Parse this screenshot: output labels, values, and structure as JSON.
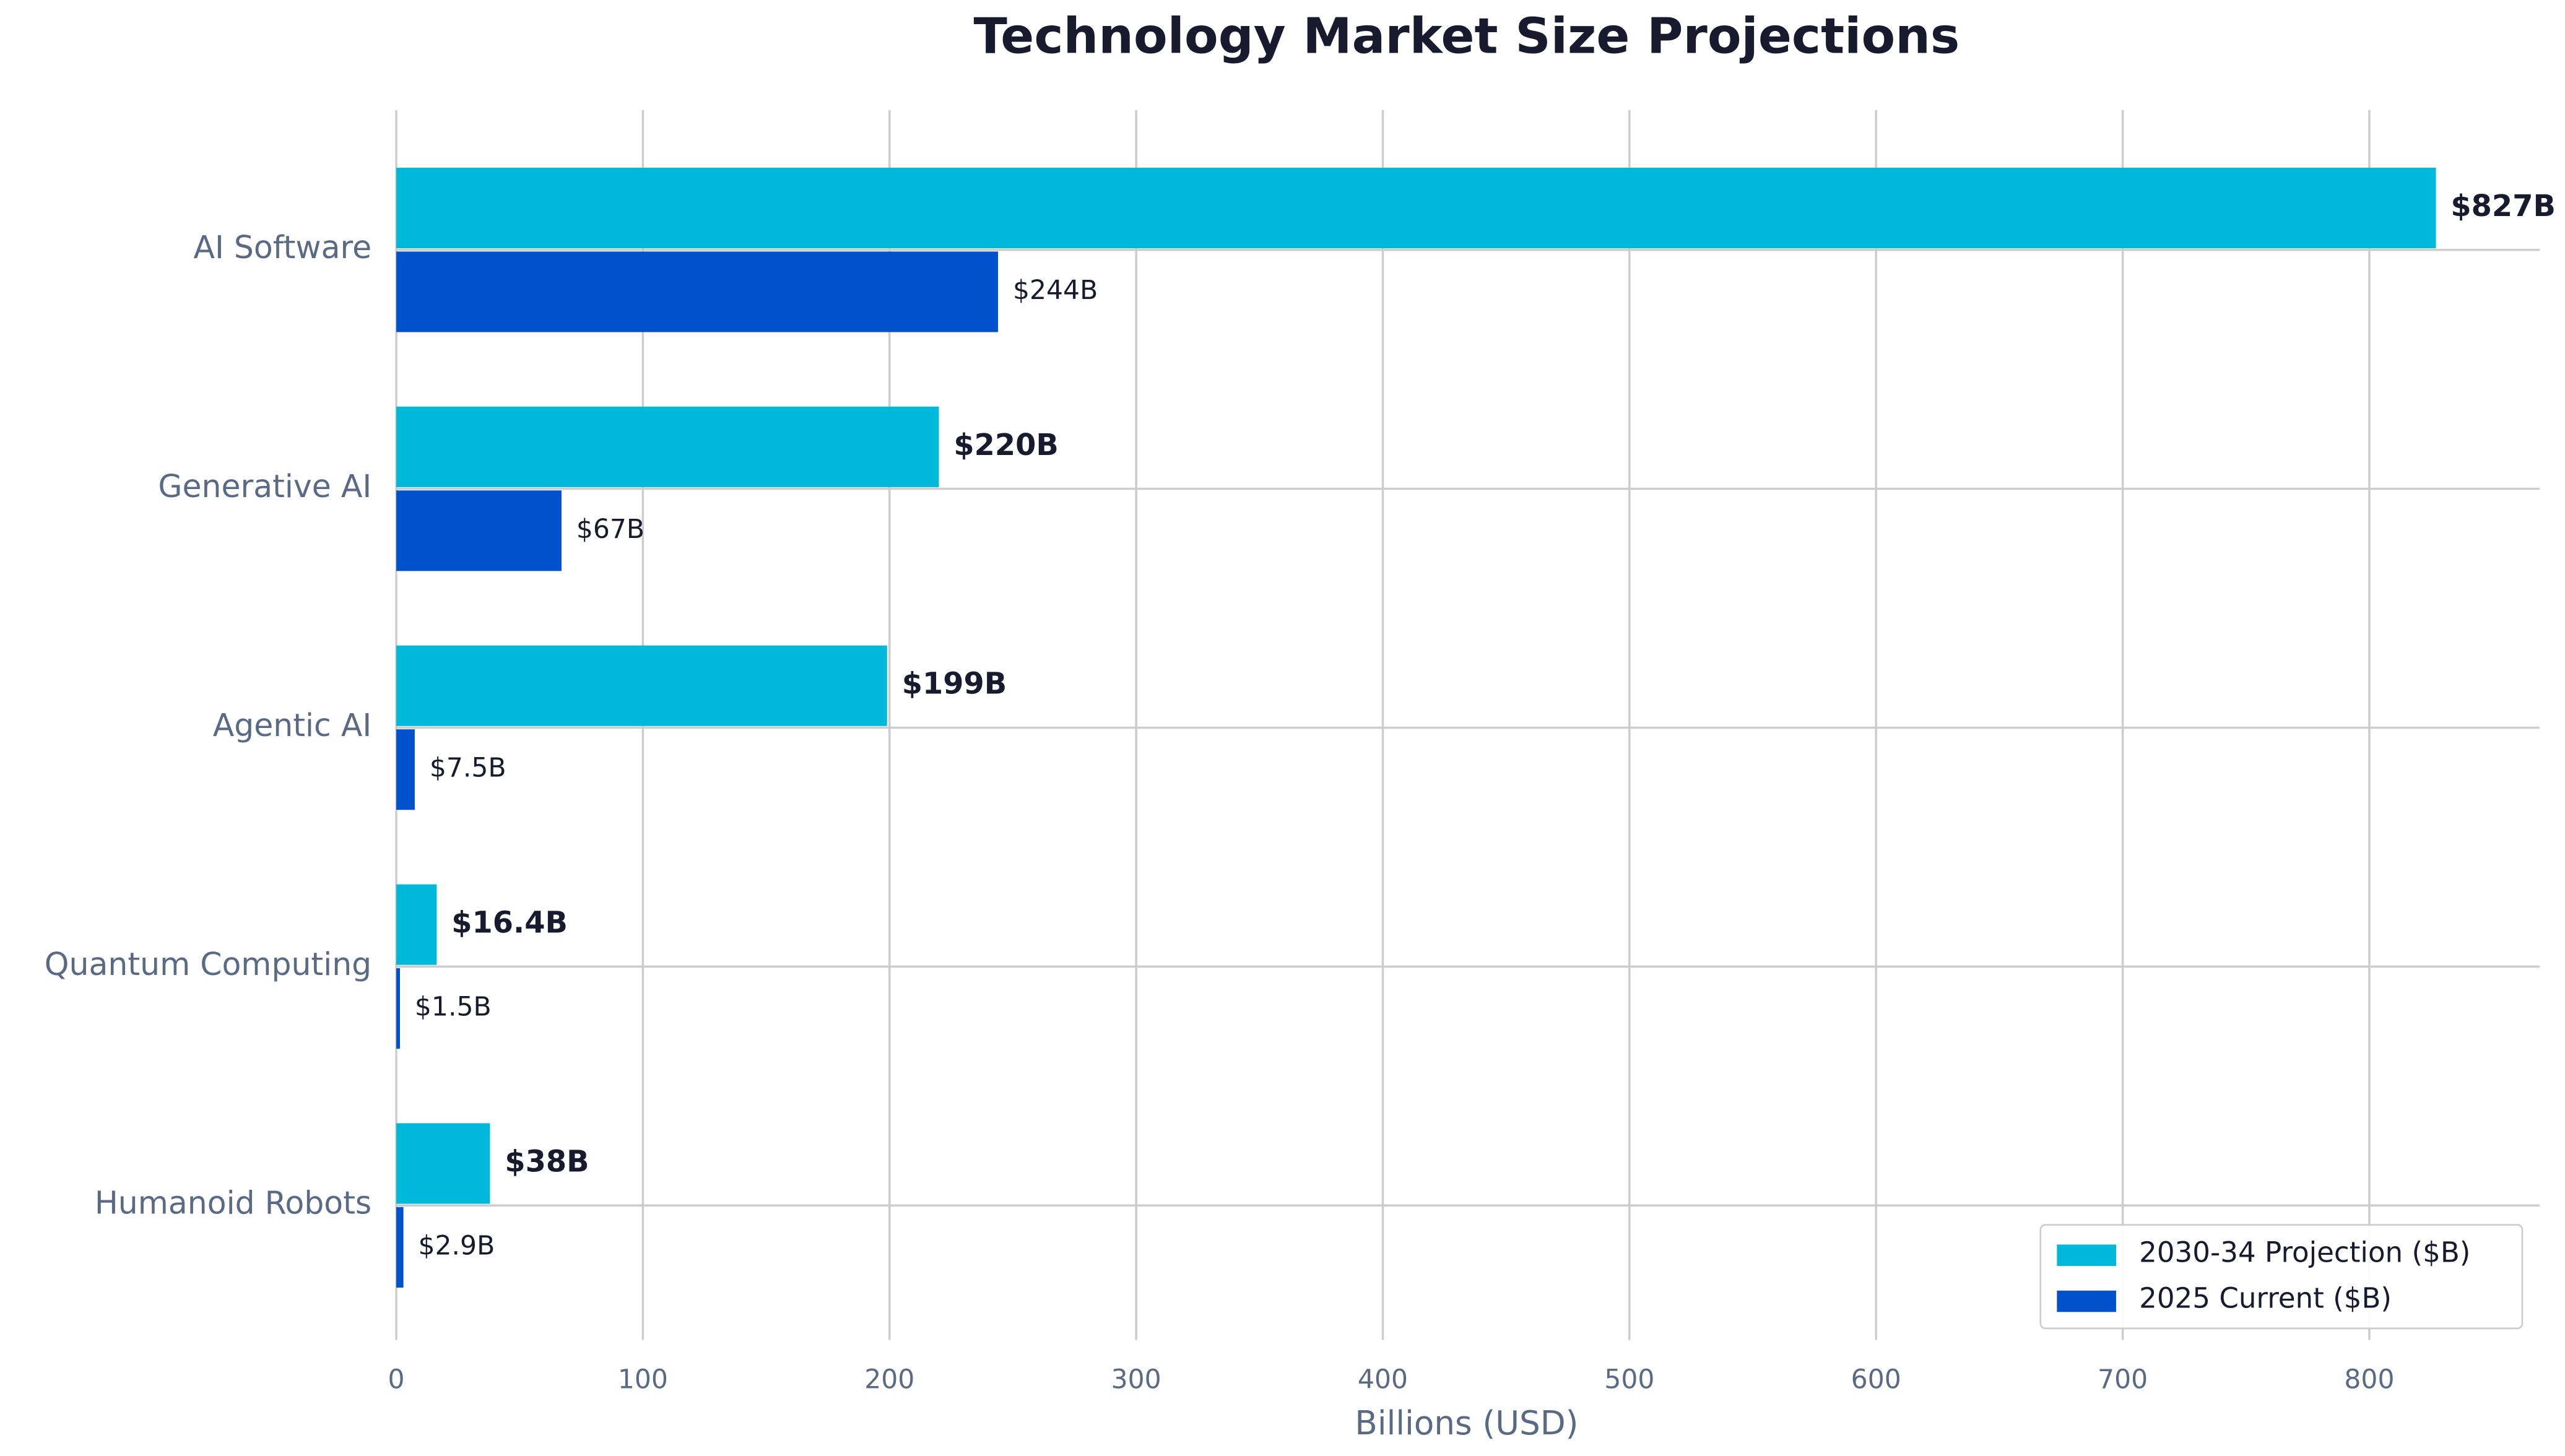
{
  "chart_data": {
    "type": "barh",
    "title": "Technology Market Size Projections",
    "xlabel": "Billions (USD)",
    "categories": [
      "AI Software",
      "Generative AI",
      "Agentic AI",
      "Quantum Computing",
      "Humanoid Robots"
    ],
    "series": [
      {
        "name": "2030-34 Projection ($B)",
        "color": "#00b8d9",
        "values": [
          827,
          220,
          199,
          16.4,
          38
        ],
        "value_labels": [
          "$827B",
          "$220B",
          "$199B",
          "$16.4B",
          "$38B"
        ]
      },
      {
        "name": "2025 Current ($B)",
        "color": "#0052cc",
        "values": [
          244,
          67,
          7.5,
          1.5,
          2.9
        ],
        "value_labels": [
          "$244B",
          "$67B",
          "$7.5B",
          "$1.5B",
          "$2.9B"
        ]
      }
    ],
    "xlim": [
      0,
      869
    ],
    "xticks": [
      0,
      100,
      200,
      300,
      400,
      500,
      600,
      700,
      800
    ],
    "grid": true,
    "legend": "lower right"
  }
}
